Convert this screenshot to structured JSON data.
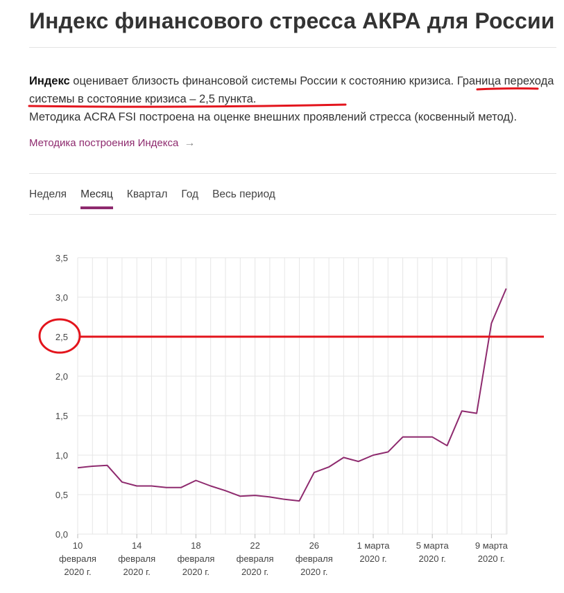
{
  "page": {
    "title": "Индекс финансового стресса АКРА для России"
  },
  "description": {
    "bold_word": "Индекс",
    "text_part1": " оценивает близость финансовой системы России к состоянию кризиса. ",
    "highlight": "Граница перехода системы в состояние кризиса – 2,5 пункта.",
    "line2": "Методика ACRA FSI построена на оценке внешних проявлений стресса (косвенный метод)."
  },
  "method_link": {
    "label": "Методика построения Индекса",
    "arrow_icon": "arrow-right-icon"
  },
  "tabs": [
    {
      "label": "Неделя",
      "active": false
    },
    {
      "label": "Месяц",
      "active": true
    },
    {
      "label": "Квартал",
      "active": false
    },
    {
      "label": "Год",
      "active": false
    },
    {
      "label": "Весь период",
      "active": false
    }
  ],
  "colors": {
    "accent": "#8e2a6e",
    "annotation_red": "#e3141c",
    "grid": "#e6e6e6",
    "text": "#333333"
  },
  "chart_data": {
    "type": "line",
    "title": "",
    "xlabel": "",
    "ylabel": "",
    "ylim": [
      0,
      3.5
    ],
    "y_ticks": [
      "0,0",
      "0,5",
      "1,0",
      "1,5",
      "2,0",
      "2,5",
      "3,0",
      "3,5"
    ],
    "x_tick_labels": [
      [
        "10",
        "февраля",
        "2020 г."
      ],
      [
        "14",
        "февраля",
        "2020 г."
      ],
      [
        "18",
        "февраля",
        "2020 г."
      ],
      [
        "22",
        "февраля",
        "2020 г."
      ],
      [
        "26",
        "февраля",
        "2020 г."
      ],
      [
        "1 марта",
        "2020 г."
      ],
      [
        "5 марта",
        "2020 г."
      ],
      [
        "9 марта",
        "2020 г."
      ]
    ],
    "x_start_date": "2020-02-10",
    "grid": true,
    "series": [
      {
        "color": "#8e2a6e",
        "x": [
          "2020-02-10",
          "2020-02-11",
          "2020-02-12",
          "2020-02-13",
          "2020-02-14",
          "2020-02-15",
          "2020-02-16",
          "2020-02-17",
          "2020-02-18",
          "2020-02-19",
          "2020-02-20",
          "2020-02-21",
          "2020-02-22",
          "2020-02-23",
          "2020-02-24",
          "2020-02-25",
          "2020-02-26",
          "2020-02-27",
          "2020-02-28",
          "2020-02-29",
          "2020-03-01",
          "2020-03-02",
          "2020-03-03",
          "2020-03-04",
          "2020-03-05",
          "2020-03-06",
          "2020-03-07",
          "2020-03-08",
          "2020-03-09",
          "2020-03-10"
        ],
        "values": [
          0.84,
          0.86,
          0.87,
          0.66,
          0.61,
          0.61,
          0.59,
          0.59,
          0.68,
          0.61,
          0.55,
          0.48,
          0.49,
          0.47,
          0.44,
          0.42,
          0.78,
          0.85,
          0.97,
          0.92,
          1.0,
          1.04,
          1.23,
          1.23,
          1.23,
          1.12,
          1.56,
          1.53,
          2.67,
          3.11
        ]
      }
    ],
    "annotations": {
      "threshold_line_value": 2.5,
      "circled_tick": "2,5"
    }
  }
}
